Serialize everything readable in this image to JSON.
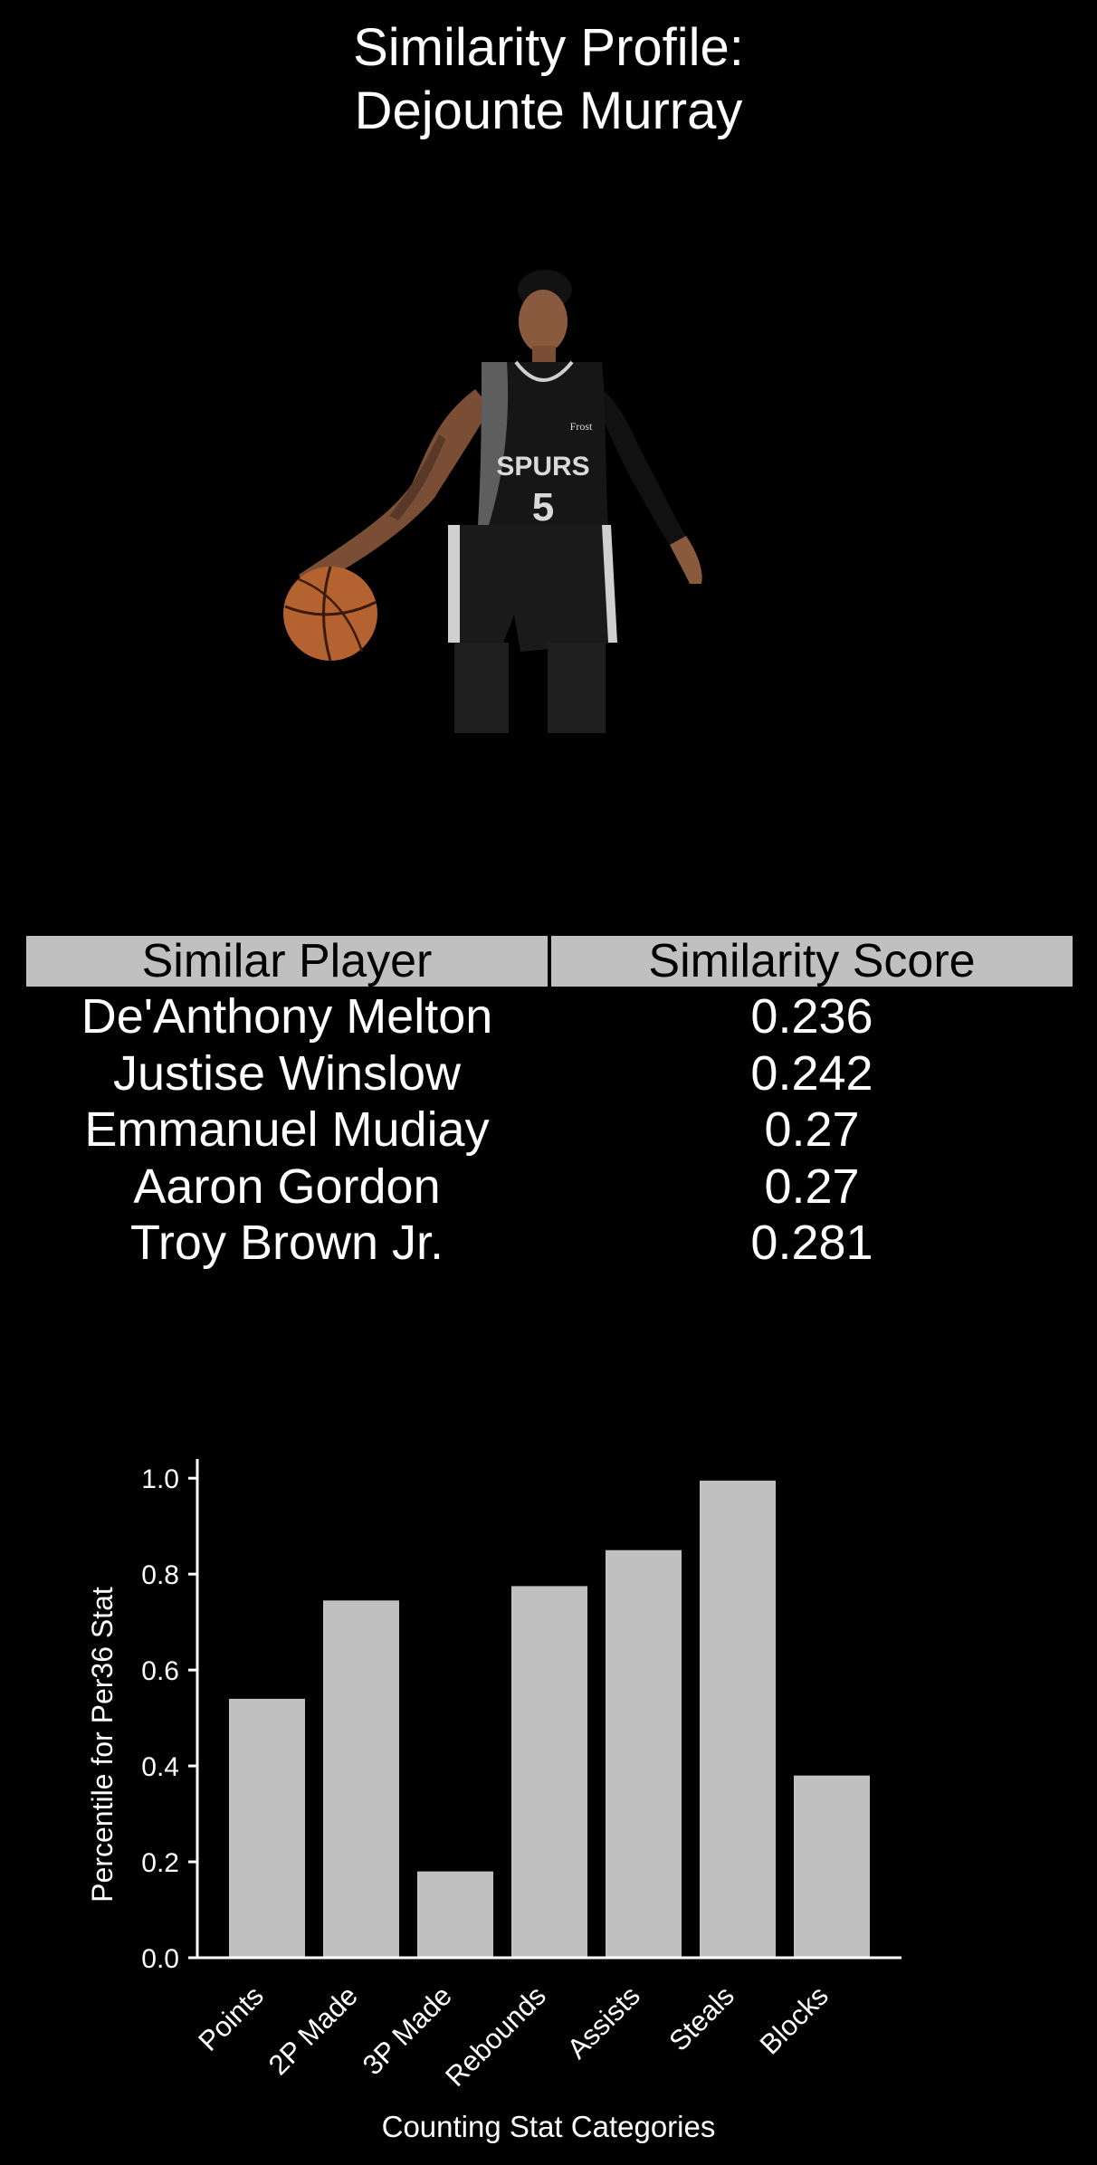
{
  "header": {
    "title_line1": "Similarity Profile:",
    "title_line2": "Dejounte Murray"
  },
  "photo": {
    "alt": "Dejounte Murray",
    "jersey_text": "SPURS",
    "jersey_number": "5",
    "sponsor_text": "Frost"
  },
  "similar_table": {
    "headers": [
      "Similar Player",
      "Similarity Score"
    ],
    "rows": [
      {
        "player": "De'Anthony Melton",
        "score": "0.236"
      },
      {
        "player": "Justise Winslow",
        "score": "0.242"
      },
      {
        "player": "Emmanuel Mudiay",
        "score": "0.27"
      },
      {
        "player": "Aaron Gordon",
        "score": "0.27"
      },
      {
        "player": "Troy Brown Jr.",
        "score": "0.281"
      }
    ]
  },
  "chart_data": {
    "type": "bar",
    "categories": [
      "Points",
      "2P Made",
      "3P Made",
      "Rebounds",
      "Assists",
      "Steals",
      "Blocks"
    ],
    "values": [
      0.54,
      0.745,
      0.18,
      0.775,
      0.85,
      0.995,
      0.38
    ],
    "title": "",
    "xlabel": "Counting Stat Categories",
    "ylabel": "Percentile for Per36 Stat",
    "ylim": [
      0,
      1.04
    ],
    "yticks": [
      "0.0",
      "0.2",
      "0.4",
      "0.6",
      "0.8",
      "1.0"
    ],
    "grid": false,
    "bar_color": "#c0c0c0",
    "axis_color": "#ffffff",
    "background": "#000000"
  }
}
